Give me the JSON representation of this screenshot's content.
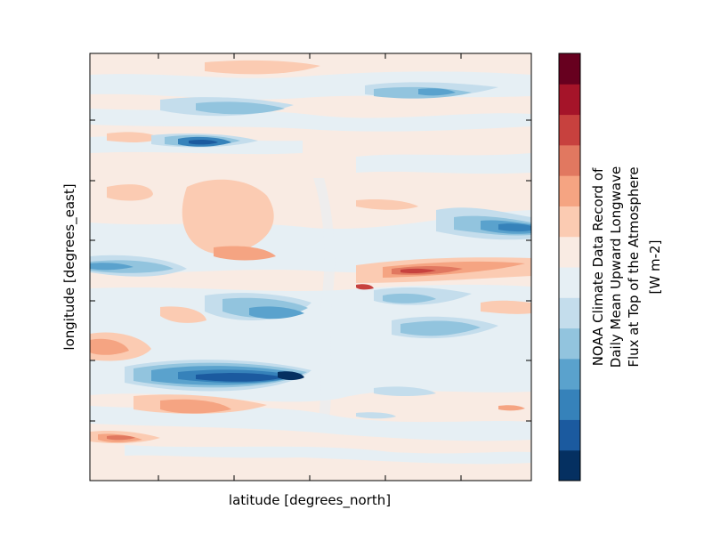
{
  "chart_data": {
    "type": "heatmap",
    "xlabel": "latitude [degrees_north]",
    "ylabel": "longitude [degrees_east]",
    "x_tick_labels": [],
    "y_tick_labels": [],
    "colorbar": {
      "label_lines": [
        "NOAA Climate Data Record of",
        "Daily Mean Upward Longwave",
        "Flux at Top of the Atmosphere",
        "[W m-2]"
      ],
      "levels": 15,
      "colors": [
        "#053061",
        "#1b5a9f",
        "#3682ba",
        "#5aa2cd",
        "#92c4de",
        "#c4ddec",
        "#e6eff4",
        "#f9ebe3",
        "#fbcbb2",
        "#f5a482",
        "#e17860",
        "#c7413e",
        "#a51429",
        "#67001f"
      ]
    },
    "grid": false,
    "legend": "none"
  }
}
